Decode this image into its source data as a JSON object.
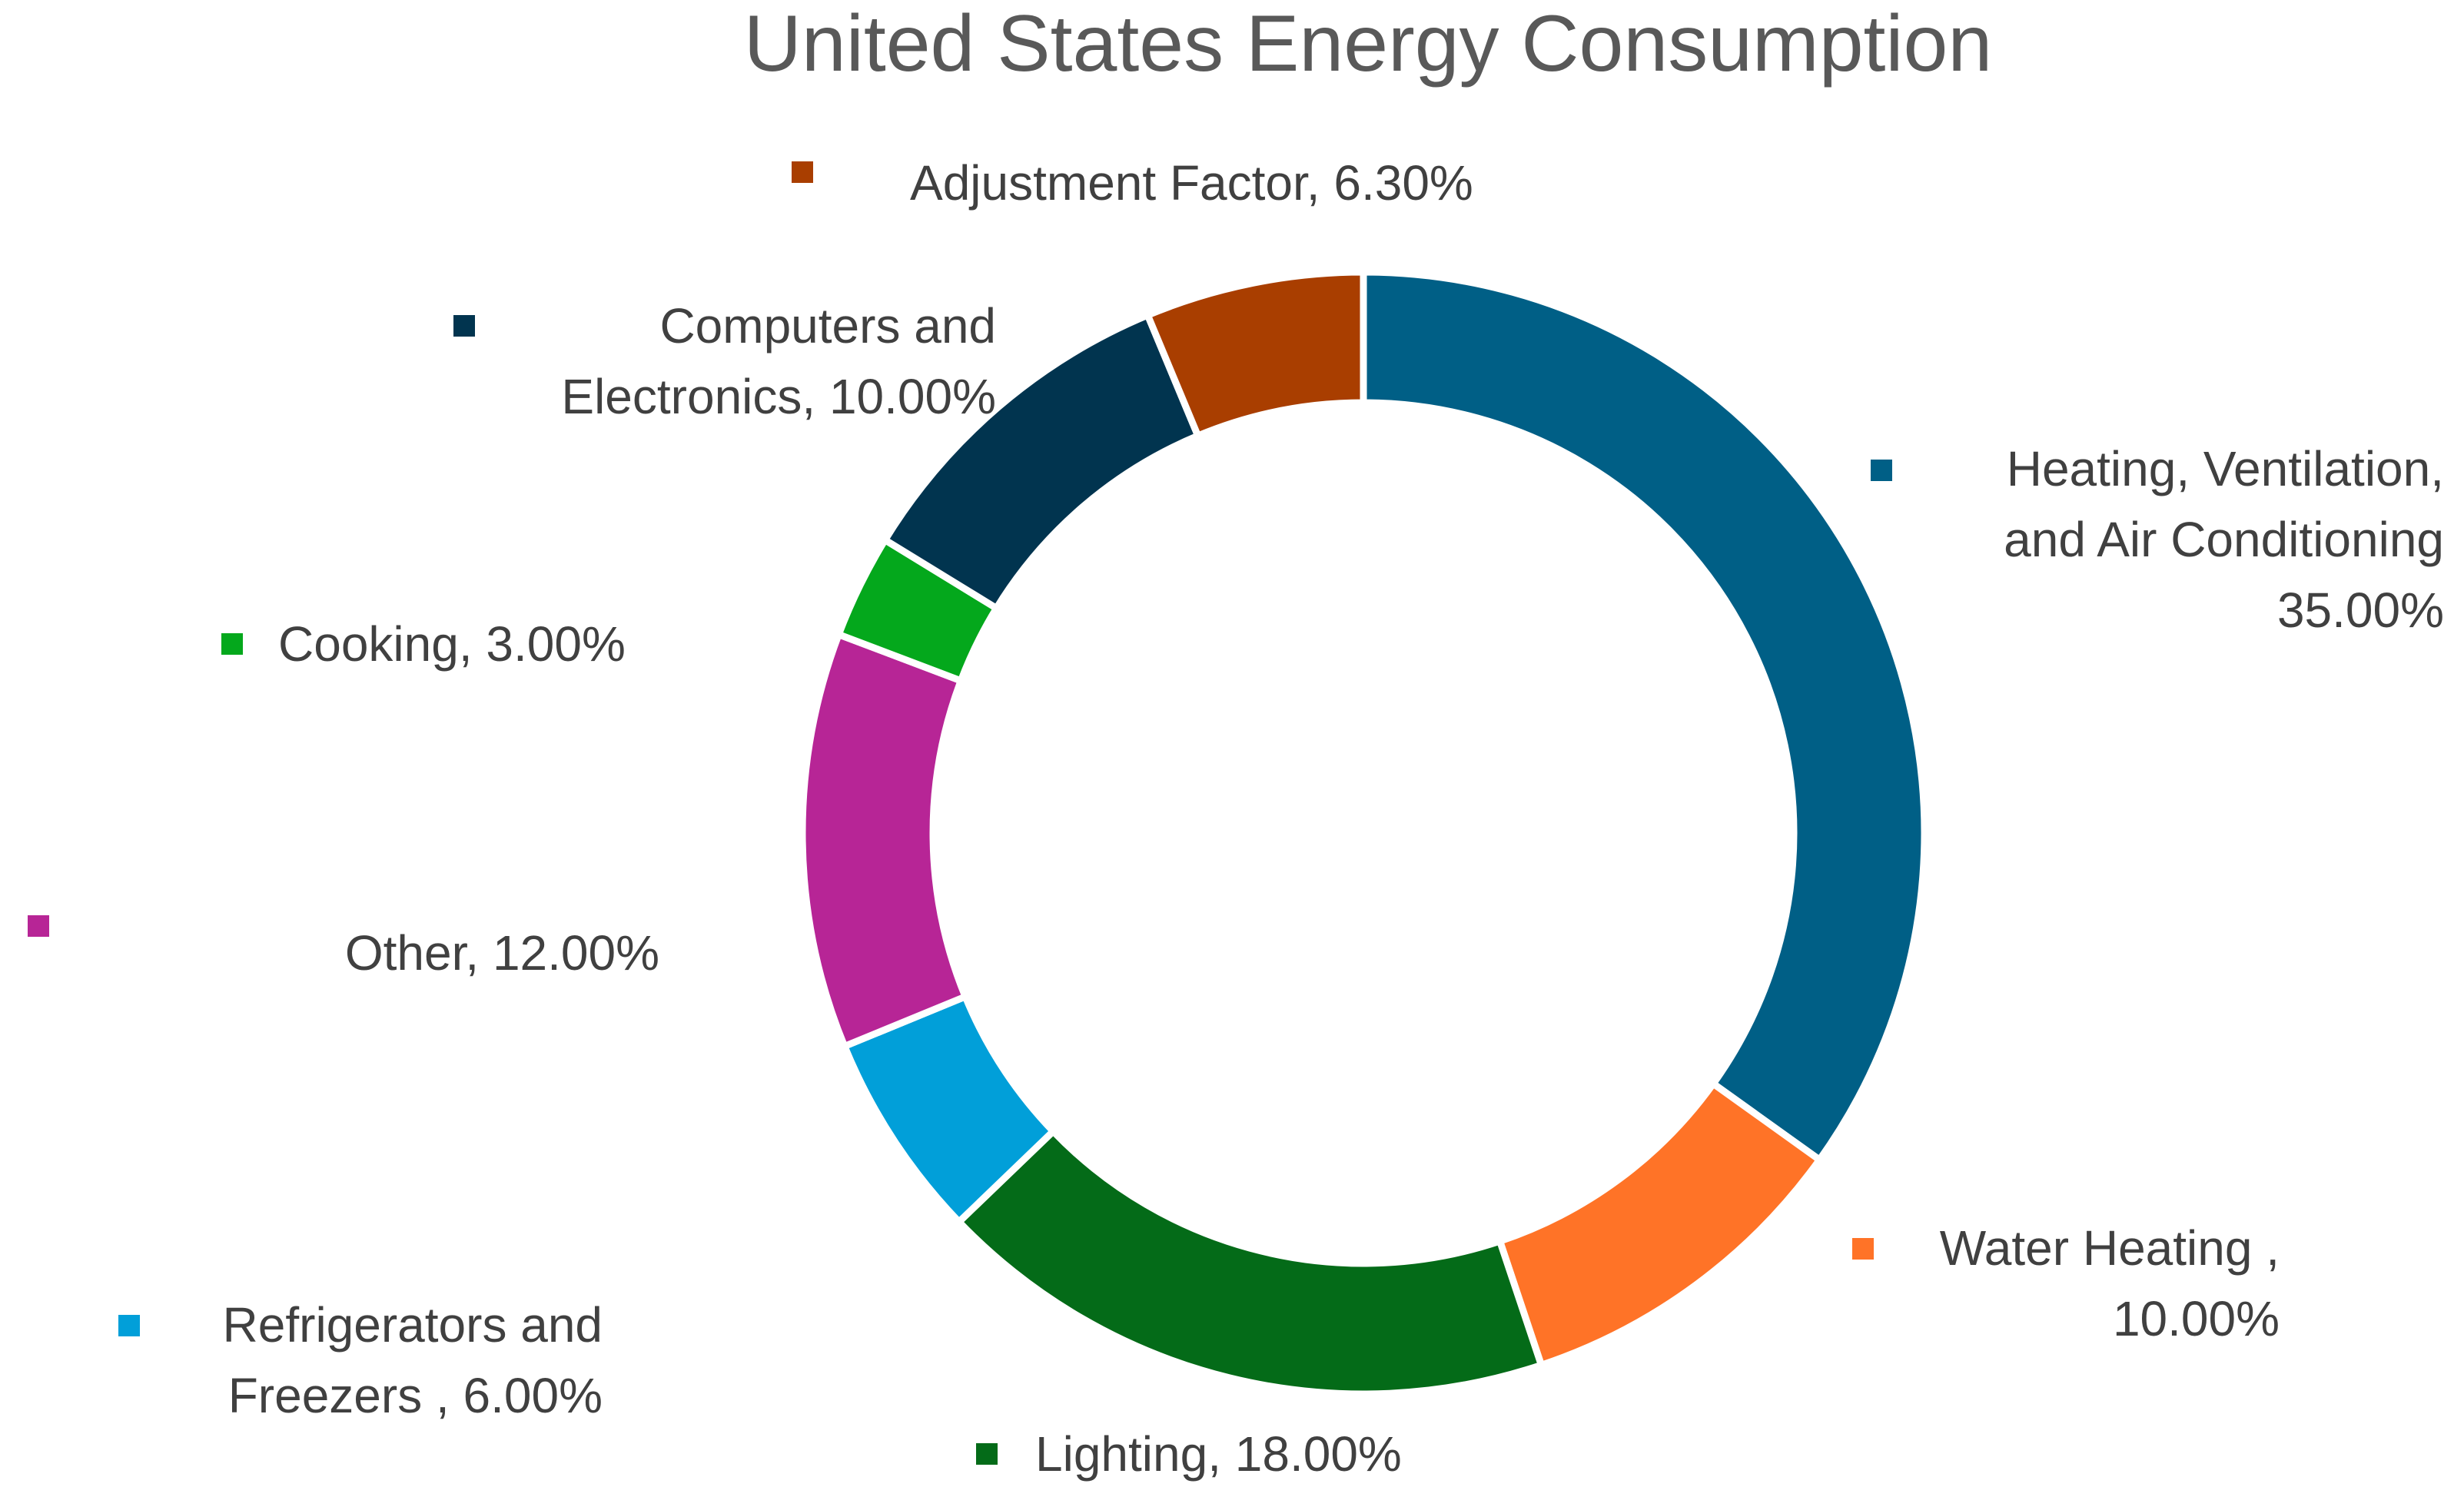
{
  "chart_data": {
    "type": "pie",
    "variant": "donut",
    "title": "United States Energy Consumption",
    "start_angle_deg": 0,
    "direction": "clockwise",
    "series": [
      {
        "name": "Heating, Ventilation, and Air Conditioning",
        "value": 35.0,
        "color": "#005F86",
        "label_lines": [
          "Heating, Ventilation,",
          "and Air Conditioning",
          "35.00%"
        ]
      },
      {
        "name": "Water Heating",
        "value": 10.0,
        "color": "#FF7327",
        "label_lines": [
          "Water Heating ,",
          "10.00%"
        ]
      },
      {
        "name": "Lighting",
        "value": 18.0,
        "color": "#046B18",
        "label_lines": [
          "Lighting, 18.00%"
        ]
      },
      {
        "name": "Refrigerators and Freezers",
        "value": 6.0,
        "color": "#019FD9",
        "label_lines": [
          "Refrigerators and",
          "Freezers , 6.00%"
        ]
      },
      {
        "name": "Other",
        "value": 12.0,
        "color": "#B72596",
        "label_lines": [
          "Other, 12.00%"
        ]
      },
      {
        "name": "Cooking",
        "value": 3.0,
        "color": "#04A81C",
        "label_lines": [
          "Cooking, 3.00%"
        ]
      },
      {
        "name": "Computers and Electronics",
        "value": 10.0,
        "color": "#01344F",
        "label_lines": [
          "Computers and",
          "Electronics, 10.00%"
        ]
      },
      {
        "name": "Adjustment Factor",
        "value": 6.3,
        "color": "#A93E00",
        "label_lines": [
          "Adjustment Factor, 6.30%"
        ]
      }
    ]
  }
}
